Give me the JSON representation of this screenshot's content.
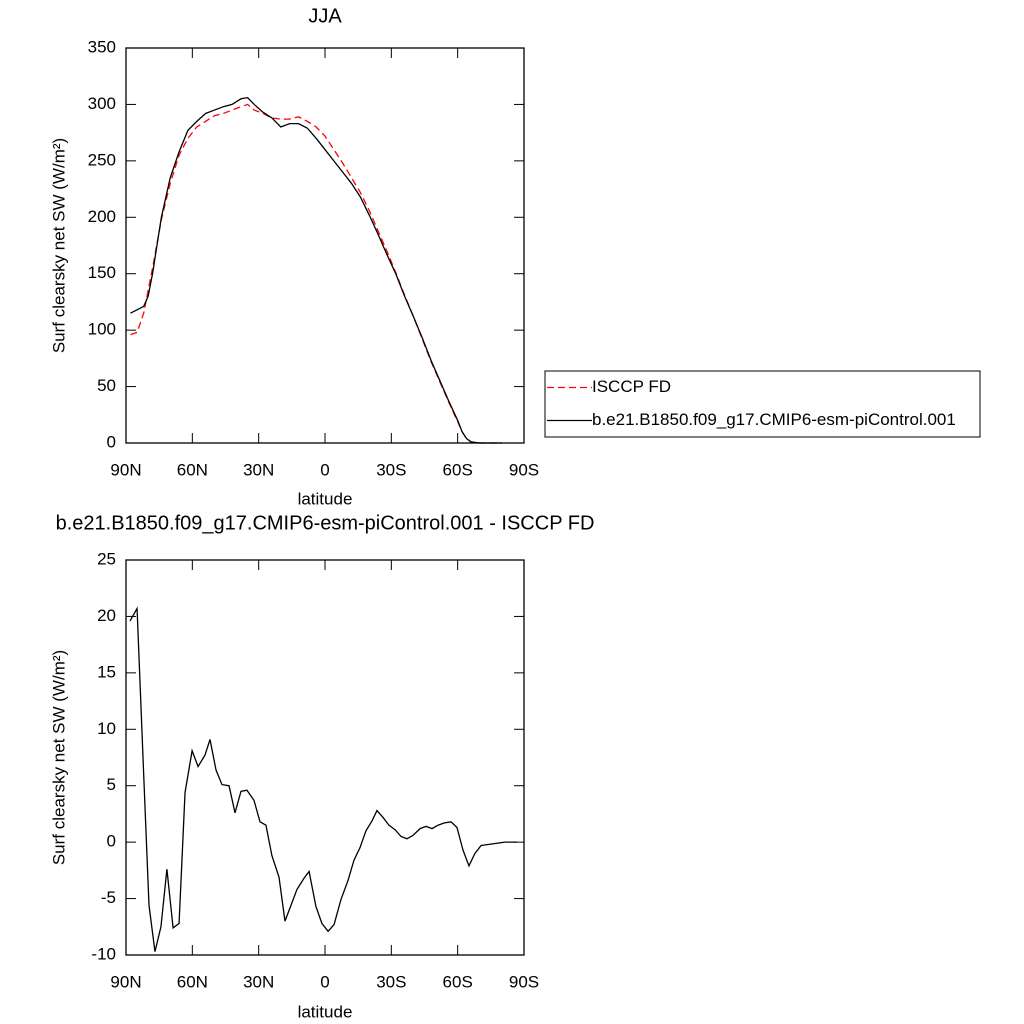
{
  "chart_data": [
    {
      "type": "line",
      "title": "JJA",
      "xlabel": "latitude",
      "ylabel": "Surf clearsky net SW (W/m²)",
      "xlim": [
        90,
        -90
      ],
      "xticks": [
        {
          "value": 90,
          "label": "90N"
        },
        {
          "value": 60,
          "label": "60N"
        },
        {
          "value": 30,
          "label": "30N"
        },
        0,
        {
          "value": -30,
          "label": "30S"
        },
        {
          "value": -60,
          "label": "60S"
        },
        {
          "value": -90,
          "label": "90S"
        }
      ],
      "ylim": [
        0,
        350
      ],
      "yticks": [
        0,
        50,
        100,
        150,
        200,
        250,
        300,
        350
      ],
      "legend": "right",
      "x": [
        88,
        85,
        82,
        80,
        78,
        74,
        70,
        66,
        62,
        58,
        54,
        50,
        46,
        42,
        38,
        35,
        32,
        28,
        24,
        20,
        16,
        12,
        8,
        4,
        0,
        -4,
        -8,
        -12,
        -16,
        -20,
        -24,
        -28,
        -32,
        -36,
        -40,
        -44,
        -48,
        -52,
        -56,
        -60,
        -62,
        -64,
        -66,
        -70,
        -74,
        -78,
        -80
      ],
      "series": [
        {
          "name": "ISCCP FD",
          "color": "#ff0000",
          "dash": true,
          "values": [
            96,
            98,
            115,
            135,
            155,
            198,
            230,
            255,
            270,
            280,
            285,
            290,
            292,
            295,
            298,
            300,
            295,
            292,
            288,
            287,
            287,
            289,
            285,
            280,
            272,
            260,
            248,
            235,
            222,
            206,
            188,
            170,
            151,
            131,
            112,
            92,
            72,
            54,
            36,
            19,
            10,
            4,
            1,
            0,
            0,
            0,
            0
          ]
        },
        {
          "name": "b.e21.B1850.f09_g17.CMIP6-esm-piControl.001",
          "color": "#000000",
          "dash": false,
          "values": [
            115,
            118,
            121,
            130,
            150,
            200,
            235,
            258,
            277,
            285,
            292,
            295,
            298,
            300,
            305,
            306,
            300,
            293,
            288,
            280,
            283,
            283,
            279,
            270,
            260,
            250,
            240,
            230,
            218,
            202,
            185,
            167,
            150,
            130,
            112,
            93,
            73,
            55,
            37,
            20,
            10,
            4,
            1,
            0,
            0,
            0,
            0
          ]
        }
      ]
    },
    {
      "type": "line",
      "title": "b.e21.B1850.f09_g17.CMIP6-esm-piControl.001 - ISCCP FD",
      "xlabel": "latitude",
      "ylabel": "Surf clearsky net SW (W/m²)",
      "xlim": [
        90,
        -90
      ],
      "xticks": [
        {
          "value": 90,
          "label": "90N"
        },
        {
          "value": 60,
          "label": "60N"
        },
        {
          "value": 30,
          "label": "30N"
        },
        0,
        {
          "value": -30,
          "label": "30S"
        },
        {
          "value": -60,
          "label": "60S"
        },
        {
          "value": -90,
          "label": "90S"
        }
      ],
      "ylim": [
        -10,
        25
      ],
      "yticks": [
        -10,
        -5,
        0,
        5,
        10,
        15,
        20,
        25
      ],
      "x": [
        88.2,
        85,
        81.9,
        79.6,
        76.9,
        74.2,
        71.5,
        68.7,
        66,
        63.3,
        60.1,
        57.4,
        54.3,
        52,
        49.3,
        46.6,
        43.4,
        40.7,
        38,
        35.3,
        32.1,
        29.4,
        26.7,
        24,
        20.8,
        18.1,
        15.4,
        12.7,
        9.5,
        7.2,
        4.1,
        1.4,
        -1.4,
        -4.1,
        -7.2,
        -10.4,
        -13.1,
        -15.8,
        -18.5,
        -21.3,
        -23.5,
        -26.2,
        -28.9,
        -31.7,
        -34.4,
        -37.1,
        -39.8,
        -43,
        -45.7,
        -48.4,
        -51.1,
        -53.8,
        -57,
        -59.7,
        -62.4,
        -65.1,
        -67.8,
        -70.6,
        -74.2,
        -77.8,
        -81.4,
        -86.8
      ],
      "series": [
        {
          "color": "#000000",
          "dash": false,
          "values": [
            19.6,
            20.7,
            5.5,
            -5.6,
            -9.7,
            -7.5,
            -2.4,
            -7.6,
            -7.2,
            4.4,
            8.1,
            6.7,
            7.7,
            9.1,
            6.4,
            5.1,
            5,
            2.6,
            4.5,
            4.6,
            3.7,
            1.8,
            1.5,
            -1.2,
            -3.1,
            -7,
            -5.6,
            -4.2,
            -3.2,
            -2.6,
            -5.7,
            -7.2,
            -7.9,
            -7.3,
            -5.1,
            -3.4,
            -1.6,
            -0.5,
            1,
            1.9,
            2.8,
            2.2,
            1.5,
            1.1,
            0.5,
            0.3,
            0.6,
            1.2,
            1.4,
            1.2,
            1.5,
            1.7,
            1.8,
            1.3,
            -0.7,
            -2.1,
            -1,
            -0.3,
            -0.2,
            -0.1,
            0,
            0
          ]
        }
      ]
    }
  ]
}
